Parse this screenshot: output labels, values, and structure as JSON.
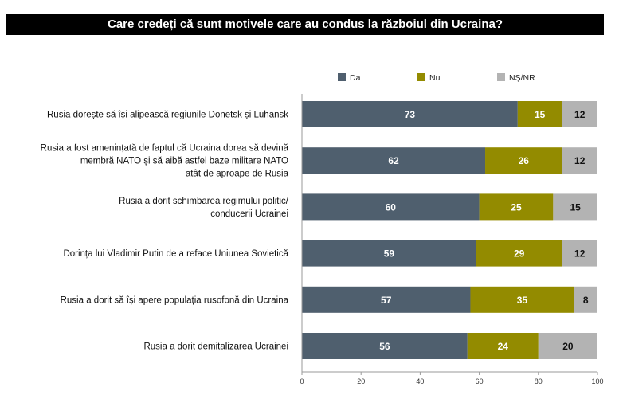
{
  "chart_data": {
    "type": "bar",
    "orientation": "horizontal",
    "stacked": true,
    "title": "Care credeți că sunt motivele care au condus la războiul din Ucraina?",
    "categories": [
      [
        "Rusia dorește să își alipească regiunile Donetsk și Luhansk"
      ],
      [
        "Rusia a fost amenințată de faptul că Ucraina dorea să devină",
        "membră NATO și să aibă astfel baze militare NATO",
        "atât de aproape de Rusia"
      ],
      [
        "Rusia a dorit schimbarea regimului politic/",
        "conducerii Ucrainei"
      ],
      [
        "Dorința lui Vladimir Putin de a reface Uniunea Sovietică"
      ],
      [
        "Rusia a dorit să își apere populația rusofonă din Ucraina"
      ],
      [
        "Rusia a dorit demitalizarea Ucrainei"
      ]
    ],
    "series": [
      {
        "name": "Da",
        "color": "#4f5f6e",
        "label_color": "#ffffff",
        "values": [
          73,
          62,
          60,
          59,
          57,
          56
        ]
      },
      {
        "name": "Nu",
        "color": "#938b00",
        "label_color": "#ffffff",
        "values": [
          15,
          26,
          25,
          29,
          35,
          24
        ]
      },
      {
        "name": "NȘ/NR",
        "color": "#b3b3b3",
        "label_color": "#111111",
        "values": [
          12,
          12,
          15,
          12,
          8,
          20
        ]
      }
    ],
    "xlim": [
      0,
      100
    ],
    "xticks": [
      "0",
      "20",
      "40",
      "60",
      "80",
      "100"
    ],
    "legend_position": "top",
    "grid": false
  }
}
